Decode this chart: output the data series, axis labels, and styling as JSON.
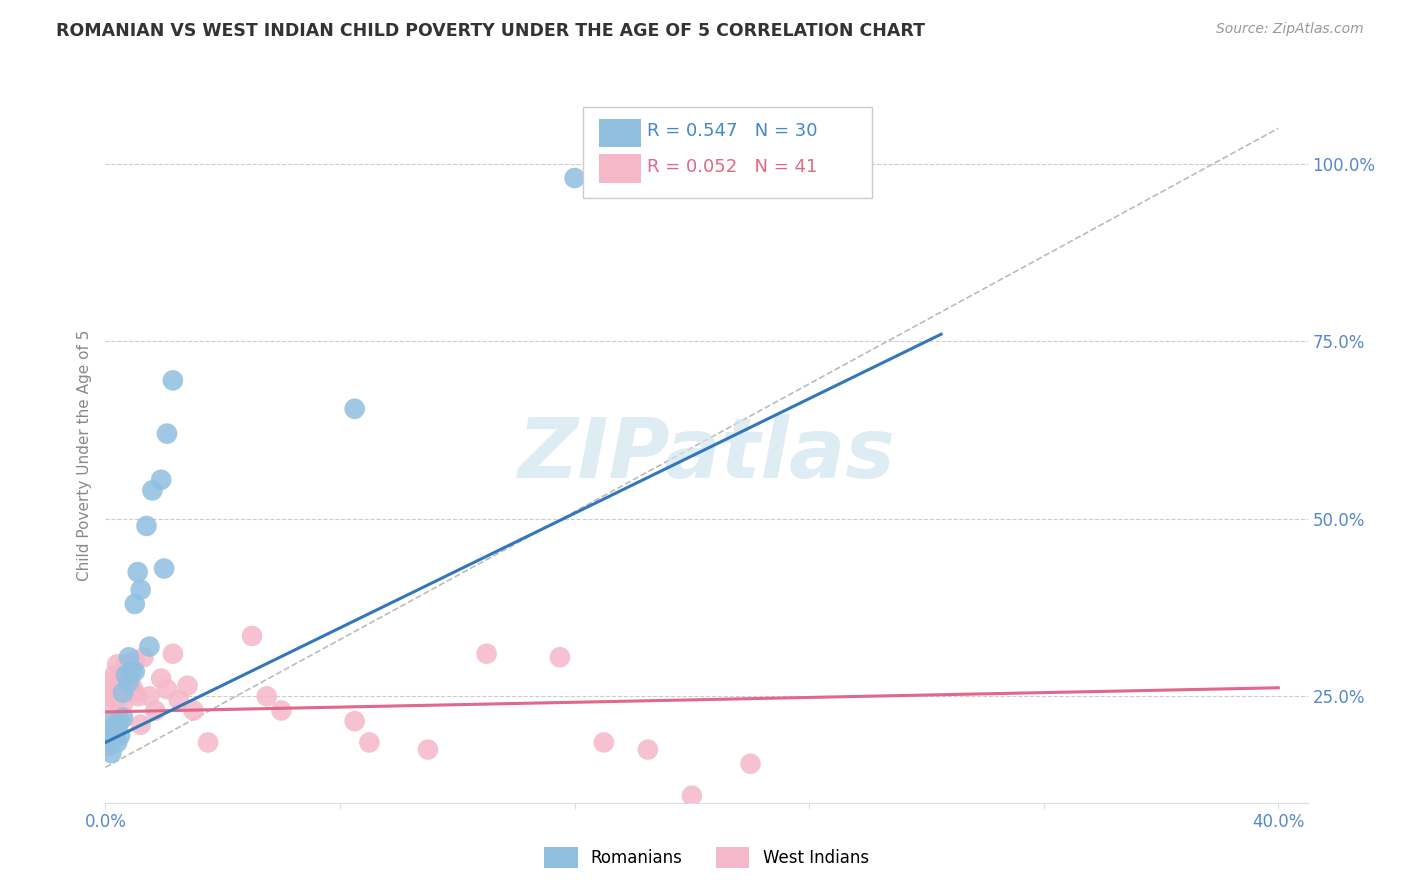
{
  "title": "ROMANIAN VS WEST INDIAN CHILD POVERTY UNDER THE AGE OF 5 CORRELATION CHART",
  "source": "Source: ZipAtlas.com",
  "ylabel": "Child Poverty Under the Age of 5",
  "legend_r1": "R = 0.547",
  "legend_n1": "N = 30",
  "legend_r2": "R = 0.052",
  "legend_n2": "N = 41",
  "romanian_x": [
    0.001,
    0.001,
    0.002,
    0.002,
    0.003,
    0.003,
    0.004,
    0.004,
    0.005,
    0.005,
    0.006,
    0.006,
    0.007,
    0.008,
    0.008,
    0.009,
    0.01,
    0.01,
    0.011,
    0.012,
    0.014,
    0.016,
    0.019,
    0.021,
    0.023,
    0.085,
    0.16,
    0.19,
    0.02,
    0.015
  ],
  "romanian_y": [
    0.195,
    0.18,
    0.17,
    0.205,
    0.195,
    0.215,
    0.185,
    0.21,
    0.195,
    0.215,
    0.22,
    0.255,
    0.28,
    0.305,
    0.27,
    0.285,
    0.38,
    0.285,
    0.425,
    0.4,
    0.49,
    0.54,
    0.555,
    0.62,
    0.695,
    0.655,
    0.98,
    0.98,
    0.43,
    0.32
  ],
  "westindian_x": [
    0.001,
    0.001,
    0.002,
    0.002,
    0.003,
    0.003,
    0.004,
    0.004,
    0.005,
    0.005,
    0.006,
    0.007,
    0.007,
    0.008,
    0.009,
    0.01,
    0.01,
    0.011,
    0.012,
    0.013,
    0.015,
    0.017,
    0.019,
    0.021,
    0.023,
    0.025,
    0.028,
    0.03,
    0.035,
    0.05,
    0.055,
    0.06,
    0.085,
    0.09,
    0.11,
    0.13,
    0.155,
    0.17,
    0.185,
    0.2,
    0.22
  ],
  "westindian_y": [
    0.25,
    0.235,
    0.27,
    0.255,
    0.28,
    0.26,
    0.24,
    0.295,
    0.265,
    0.26,
    0.24,
    0.27,
    0.295,
    0.285,
    0.265,
    0.3,
    0.255,
    0.25,
    0.21,
    0.305,
    0.25,
    0.23,
    0.275,
    0.26,
    0.31,
    0.245,
    0.265,
    0.23,
    0.185,
    0.335,
    0.25,
    0.23,
    0.215,
    0.185,
    0.175,
    0.31,
    0.305,
    0.185,
    0.175,
    0.11,
    0.155
  ],
  "blue_color": "#90BFE0",
  "pink_color": "#F5B8C8",
  "blue_line_color": "#3377BB",
  "pink_line_color": "#E06888",
  "ref_line_color": "#BBBBBB",
  "background_color": "#FFFFFF",
  "grid_color": "#CCCCCC",
  "title_color": "#333333",
  "axis_label_color": "#888888",
  "right_label_color": "#5588CC",
  "bottom_label_color": "#5588CC",
  "source_color": "#999999",
  "watermark_color": "#D0E4F0",
  "legend_text_color_blue": "#4488CC",
  "legend_text_color_pink": "#E06888",
  "rom_line_x": [
    0.0,
    0.285
  ],
  "rom_line_y": [
    0.185,
    0.76
  ],
  "wi_line_x": [
    0.0,
    0.4
  ],
  "wi_line_y": [
    0.228,
    0.262
  ],
  "ref_line_x": [
    0.0,
    0.4
  ],
  "ref_line_y": [
    0.15,
    1.05
  ],
  "xlim": [
    0.0,
    0.41
  ],
  "ylim": [
    0.1,
    1.08
  ],
  "yticks": [
    0.25,
    0.5,
    0.75,
    1.0
  ],
  "ytick_labels": [
    "25.0%",
    "50.0%",
    "75.0%",
    "100.0%"
  ],
  "xtick_left": "0.0%",
  "xtick_right": "40.0%"
}
